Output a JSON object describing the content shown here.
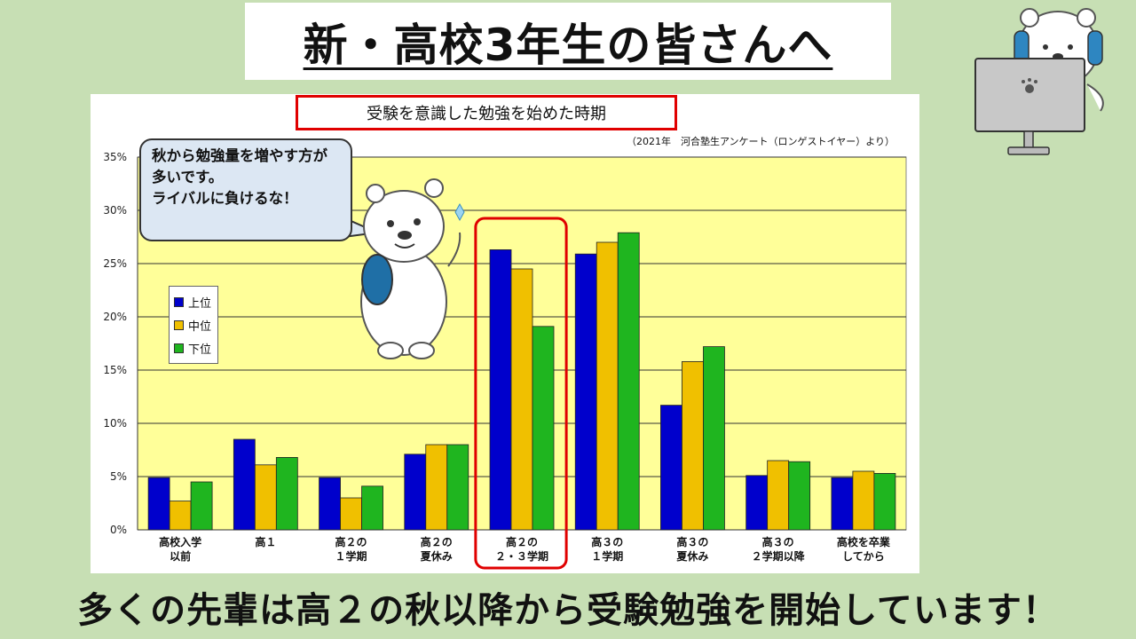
{
  "title": "新・高校3年生の皆さんへ",
  "chart_title": "受験を意識した勉強を始めた時期",
  "source": "（2021年　河合塾生アンケート（ロンゲストイヤー）より）",
  "bubble_text": "秋から勉強量を増やす方が多いです。\nライバルに負けるな！",
  "bottom_message": "多くの先輩は高２の秋以降から受験勉強を開始しています！",
  "colors": {
    "background": "#c7dfb4",
    "plot_background": "#ffff99",
    "highlight": "#e00000",
    "series": [
      "#0000cc",
      "#f0c000",
      "#1fb51f"
    ]
  },
  "chart_data": {
    "type": "bar",
    "title": "受験を意識した勉強を始めた時期",
    "categories": [
      [
        "高校入学",
        "以前"
      ],
      [
        "高１"
      ],
      [
        "高２の",
        "１学期"
      ],
      [
        "高２の",
        "夏休み"
      ],
      [
        "高２の",
        "２・３学期"
      ],
      [
        "高３の",
        "１学期"
      ],
      [
        "高３の",
        "夏休み"
      ],
      [
        "高３の",
        "２学期以降"
      ],
      [
        "高校を卒業",
        "してから"
      ]
    ],
    "series": [
      {
        "name": "上位",
        "values": [
          4.9,
          8.5,
          4.9,
          7.1,
          26.3,
          25.9,
          11.7,
          5.1,
          4.9
        ]
      },
      {
        "name": "中位",
        "values": [
          2.7,
          6.1,
          3.0,
          8.0,
          24.5,
          27.0,
          15.8,
          6.5,
          5.5
        ]
      },
      {
        "name": "下位",
        "values": [
          4.5,
          6.8,
          4.1,
          8.0,
          19.1,
          27.9,
          17.2,
          6.4,
          5.3
        ]
      }
    ],
    "ylim": [
      0,
      35
    ],
    "yticks": [
      "0%",
      "5%",
      "10%",
      "15%",
      "20%",
      "25%",
      "30%",
      "35%"
    ],
    "highlight_category": 4,
    "grid": true,
    "legend": "left"
  }
}
